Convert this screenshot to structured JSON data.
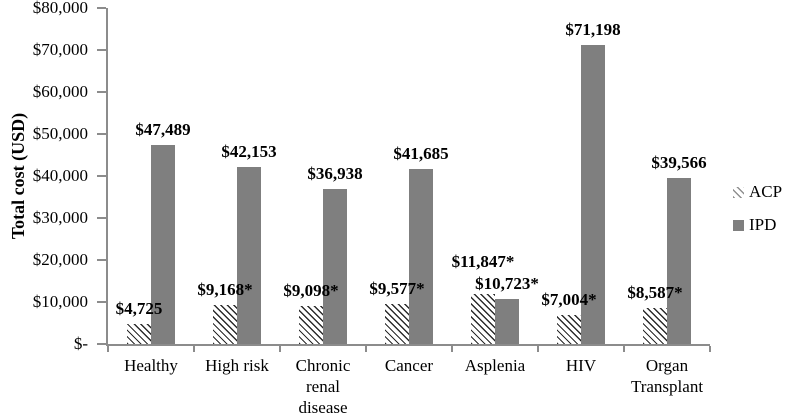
{
  "chart_data": {
    "type": "bar",
    "title": "",
    "xlabel": "",
    "ylabel": "Total cost (USD)",
    "ylim": [
      0,
      80000
    ],
    "ytick_step": 10000,
    "ytick_labels": [
      "$-",
      "$10,000",
      "$20,000",
      "$30,000",
      "$40,000",
      "$50,000",
      "$60,000",
      "$70,000",
      "$80,000"
    ],
    "categories": [
      "Healthy",
      "High risk",
      "Chronic renal disease",
      "Cancer",
      "Asplenia",
      "HIV",
      "Organ Transplant"
    ],
    "series": [
      {
        "name": "ACP",
        "style": "hatched",
        "fill": "#ffffff",
        "hatch_color": "#2b2b2b",
        "legend_marker_color": "#8f8f8f",
        "values": [
          4725,
          9168,
          9098,
          9577,
          11847,
          7004,
          8587
        ],
        "labels": [
          "$4,725",
          "$9,168*",
          "$9,098*",
          "$9,577*",
          "$11,847*",
          "$7,004*",
          "$8,587*"
        ],
        "label_dy": [
          0,
          0,
          0,
          0,
          -17,
          0,
          0
        ]
      },
      {
        "name": "IPD",
        "style": "solid",
        "color": "#7f7f7f",
        "values": [
          47489,
          42153,
          36938,
          41685,
          10723,
          71198,
          39566
        ],
        "labels": [
          "$47,489",
          "$42,153",
          "$36,938",
          "$41,685",
          "$10,723*",
          "$71,198",
          "$39,566"
        ],
        "label_dy": [
          0,
          0,
          0,
          0,
          0,
          0,
          0
        ]
      }
    ],
    "legend": [
      "ACP",
      "IPD"
    ],
    "legend_position": "right",
    "grid": false,
    "axis_color": "#8c8c8c",
    "label_color": "#000000",
    "background": "#ffffff"
  }
}
